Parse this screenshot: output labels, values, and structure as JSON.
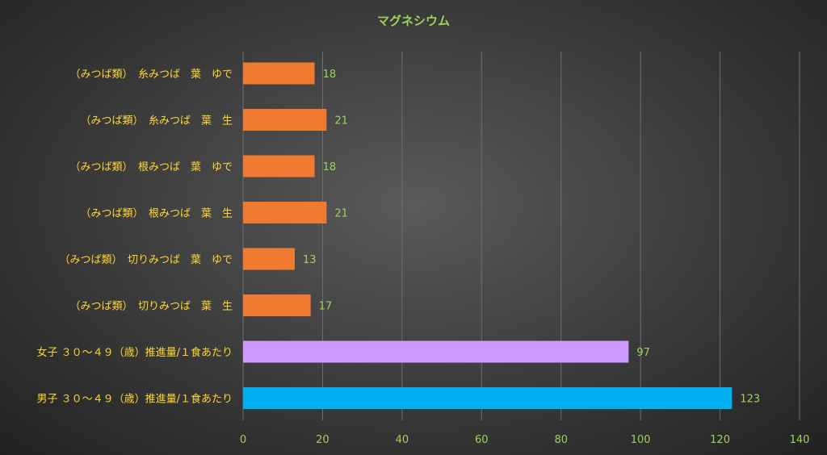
{
  "chart_data": {
    "type": "bar",
    "orientation": "horizontal",
    "title": "マグネシウム",
    "categories": [
      "（みつば類）　糸みつば　葉　ゆで",
      "（みつば類）　糸みつば　葉　生",
      "（みつば類）　根みつば　葉　ゆで",
      "（みつば類）　根みつば　葉　生",
      "（みつば類）　切りみつば　葉　ゆで",
      "（みつば類）　切りみつば　葉　生",
      "女子 ３０～４９（歳）推進量/１食あたり",
      "男子 ３０～４９（歳）推進量/１食あたり"
    ],
    "values": [
      18,
      21,
      18,
      21,
      13,
      17,
      97,
      123
    ],
    "value_labels": [
      "18",
      "21",
      "18",
      "21",
      "13",
      "17",
      "97",
      "123"
    ],
    "bar_colors": [
      "#f07a30",
      "#f07a30",
      "#f07a30",
      "#f07a30",
      "#f07a30",
      "#f07a30",
      "#cc99ff",
      "#00b0f0"
    ],
    "xlim": [
      0,
      140
    ],
    "x_ticks": [
      0,
      20,
      40,
      60,
      80,
      100,
      120,
      140
    ],
    "x_tick_labels": [
      "0",
      "20",
      "40",
      "60",
      "80",
      "100",
      "120",
      "140"
    ],
    "grid": true,
    "legend": "none"
  },
  "colors": {
    "title": "#9bd35a",
    "category_label": "#ffd633",
    "value_label": "#9bd35a",
    "tick_label": "#9bd35a",
    "gridline": "#6e6e6e"
  }
}
